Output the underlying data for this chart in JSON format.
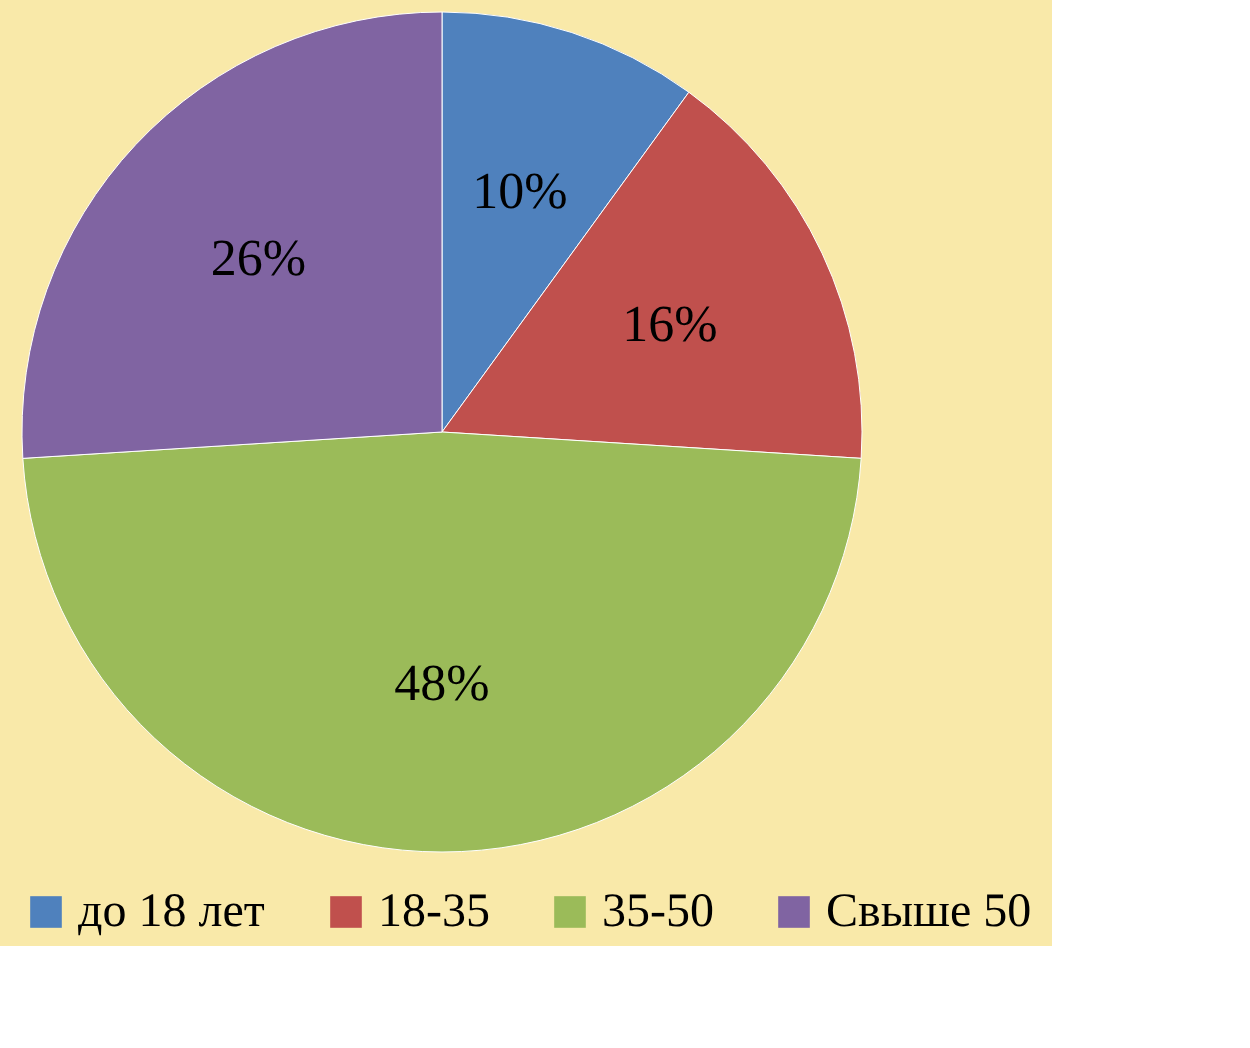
{
  "chart_data": {
    "type": "pie",
    "categories": [
      "до 18 лет",
      "18-35",
      "35-50",
      "Свыше 50"
    ],
    "values": [
      10,
      16,
      48,
      26
    ],
    "value_labels": [
      "10%",
      "16%",
      "48%",
      "26%"
    ],
    "colors": [
      "#4f81bd",
      "#c0504d",
      "#9bbb59",
      "#8064a2"
    ],
    "legend": "bottom"
  }
}
